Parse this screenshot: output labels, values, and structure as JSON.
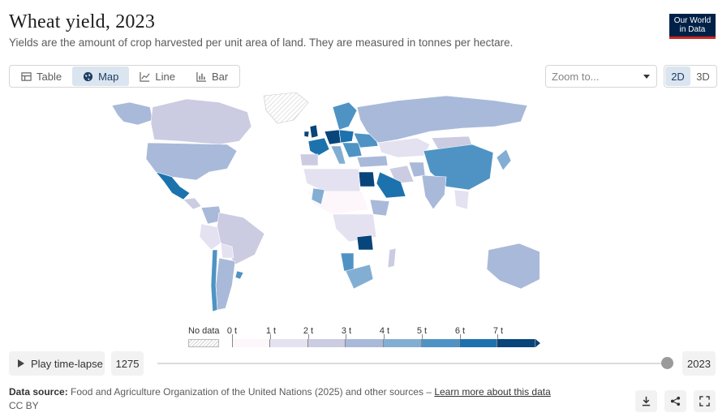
{
  "header": {
    "title": "Wheat yield, 2023",
    "subtitle": "Yields are the amount of crop harvested per unit area of land. They are measured in tonnes per hectare.",
    "logo_line1": "Our World",
    "logo_line2": "in Data"
  },
  "tabs": [
    {
      "label": "Table",
      "icon": "table-icon",
      "active": false
    },
    {
      "label": "Map",
      "icon": "globe-icon",
      "active": true
    },
    {
      "label": "Line",
      "icon": "line-chart-icon",
      "active": false
    },
    {
      "label": "Bar",
      "icon": "bar-chart-icon",
      "active": false
    }
  ],
  "zoom": {
    "placeholder": "Zoom to..."
  },
  "view_toggle": {
    "option_2d": "2D",
    "option_3d": "3D",
    "selected": "2D"
  },
  "legend": {
    "nodata_label": "No data",
    "bins": [
      {
        "label": "0 t",
        "color": "#fdf6fa"
      },
      {
        "label": "1 t",
        "color": "#e4e2f0"
      },
      {
        "label": "2 t",
        "color": "#cbcbe2"
      },
      {
        "label": "3 t",
        "color": "#a9b9d9"
      },
      {
        "label": "4 t",
        "color": "#83aed3"
      },
      {
        "label": "5 t",
        "color": "#4f93c4"
      },
      {
        "label": "6 t",
        "color": "#1c72ad"
      },
      {
        "label": "7 t",
        "color": "#08457b"
      }
    ]
  },
  "timeline": {
    "play_label": "Play time-lapse",
    "start_year": "1275",
    "end_year": "2023"
  },
  "footer": {
    "source_prefix": "Data source:",
    "source_text": "Food and Agriculture Organization of the United Nations (2025) and other sources –",
    "source_link": "Learn more about this data",
    "license": "CC BY"
  },
  "actions": [
    {
      "name": "download-icon"
    },
    {
      "name": "share-icon"
    },
    {
      "name": "fullscreen-icon"
    }
  ],
  "colors": {
    "accent": "#dbe5f0",
    "brand": "#002147",
    "brand_underline": "#ce261e"
  }
}
